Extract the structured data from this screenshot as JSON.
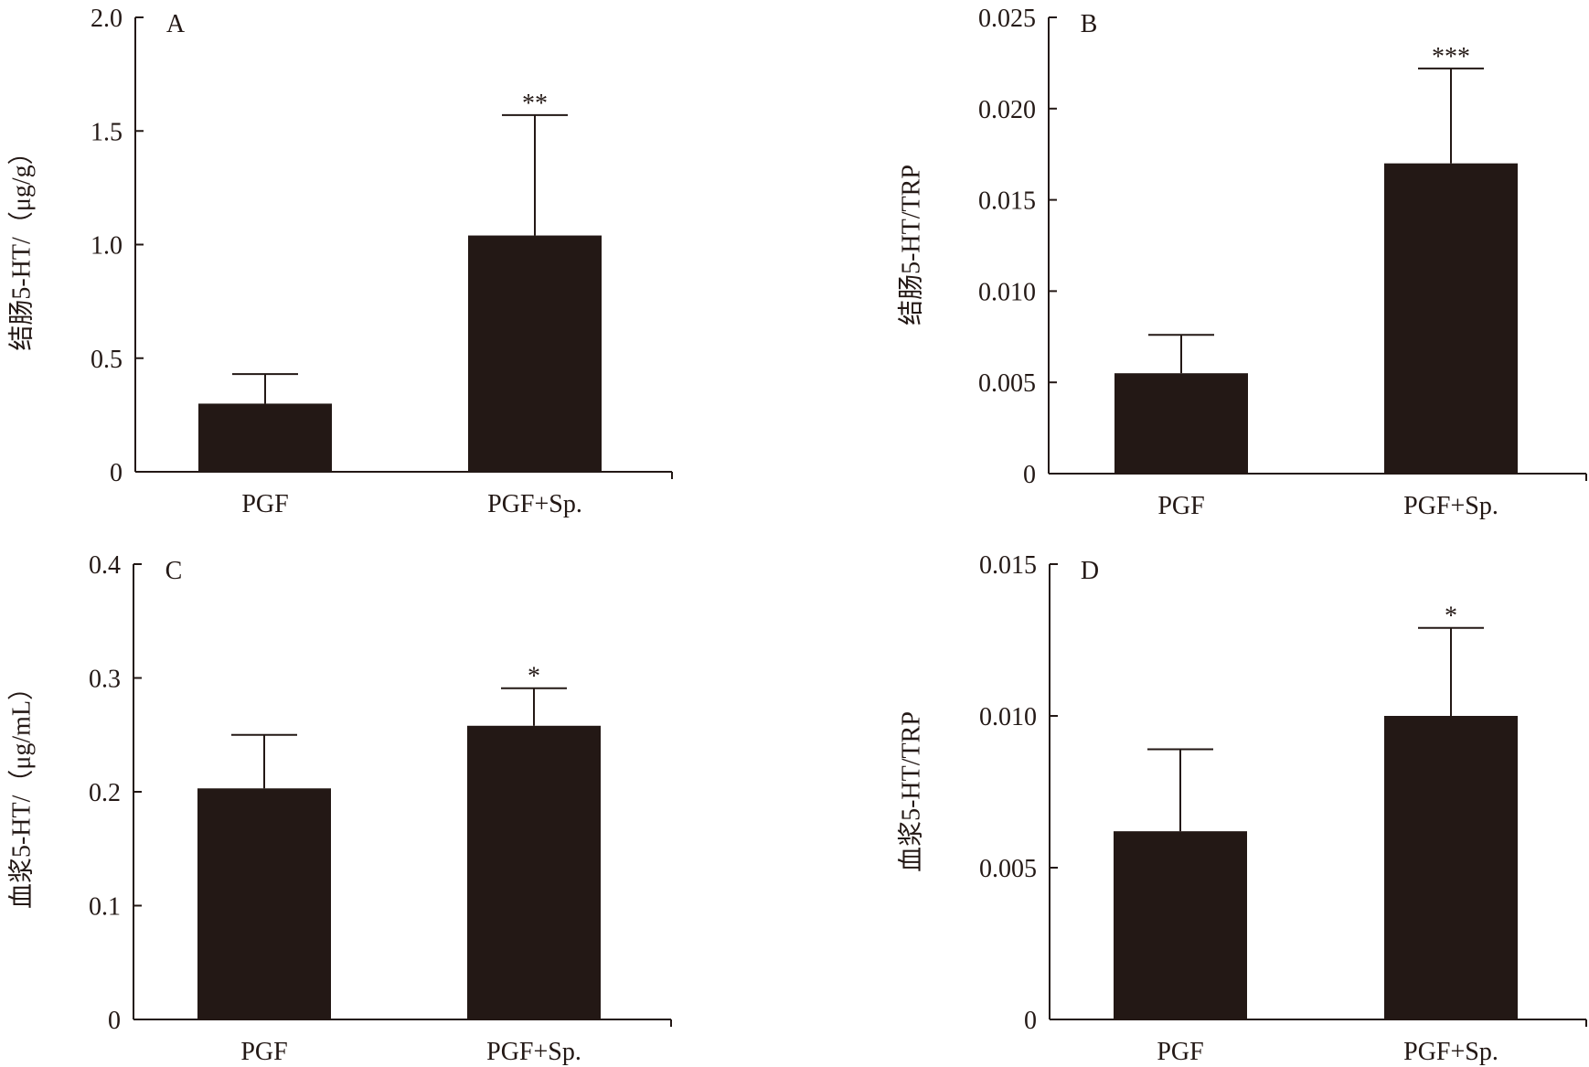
{
  "chart_data": [
    {
      "type": "bar",
      "panel_label": "A",
      "categories": [
        "PGF",
        "PGF+Sp."
      ],
      "values": [
        0.3,
        1.04
      ],
      "error": [
        0.13,
        0.53
      ],
      "significance": [
        "",
        "**"
      ],
      "ylabel": "结肠5-HT/（μg/g）",
      "ylim": [
        0,
        2.0
      ],
      "yticks": [
        "0",
        "0.5",
        "1.0",
        "1.5",
        "2.0"
      ],
      "grid": false
    },
    {
      "type": "bar",
      "panel_label": "B",
      "categories": [
        "PGF",
        "PGF+Sp."
      ],
      "values": [
        0.0055,
        0.017
      ],
      "error": [
        0.0021,
        0.0052
      ],
      "significance": [
        "",
        "***"
      ],
      "ylabel": "结肠5-HT/TRP",
      "ylim": [
        0,
        0.025
      ],
      "yticks": [
        "0",
        "0.005",
        "0.010",
        "0.015",
        "0.020",
        "0.025"
      ],
      "grid": false
    },
    {
      "type": "bar",
      "panel_label": "C",
      "categories": [
        "PGF",
        "PGF+Sp."
      ],
      "values": [
        0.203,
        0.258
      ],
      "error": [
        0.047,
        0.033
      ],
      "significance": [
        "",
        "*"
      ],
      "ylabel": "血浆5-HT/（μg/mL）",
      "ylim": [
        0,
        0.4
      ],
      "yticks": [
        "0",
        "0.1",
        "0.2",
        "0.3",
        "0.4"
      ],
      "grid": false
    },
    {
      "type": "bar",
      "panel_label": "D",
      "categories": [
        "PGF",
        "PGF+Sp."
      ],
      "values": [
        0.0062,
        0.01
      ],
      "error": [
        0.0027,
        0.0029
      ],
      "significance": [
        "",
        "*"
      ],
      "ylabel": "血浆5-HT/TRP",
      "ylim": [
        0,
        0.015
      ],
      "yticks": [
        "0",
        "0.005",
        "0.010",
        "0.015"
      ],
      "grid": false
    }
  ],
  "colors": {
    "bar": "#231815",
    "axis": "#231815",
    "background": "#ffffff"
  }
}
